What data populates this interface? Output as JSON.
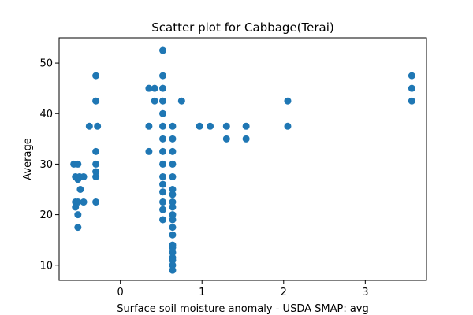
{
  "chart_data": {
    "type": "scatter",
    "title": "Scatter plot for Cabbage(Terai)",
    "xlabel": "Surface soil moisture anomaly  - USDA SMAP: avg",
    "ylabel": "Average",
    "xlim": [
      -0.75,
      3.75
    ],
    "ylim": [
      7,
      55
    ],
    "xticks": [
      0,
      1,
      2,
      3
    ],
    "yticks": [
      10,
      20,
      30,
      40,
      50
    ],
    "grid": false,
    "legend": "none",
    "marker_color": "#1f77b4",
    "points": [
      {
        "x": -0.57,
        "y": 30
      },
      {
        "x": -0.52,
        "y": 30
      },
      {
        "x": -0.55,
        "y": 27.5
      },
      {
        "x": -0.52,
        "y": 27
      },
      {
        "x": -0.5,
        "y": 27.5
      },
      {
        "x": -0.45,
        "y": 27.5
      },
      {
        "x": -0.49,
        "y": 25
      },
      {
        "x": -0.55,
        "y": 22.5
      },
      {
        "x": -0.52,
        "y": 22.5
      },
      {
        "x": -0.45,
        "y": 22.5
      },
      {
        "x": -0.55,
        "y": 21.5
      },
      {
        "x": -0.52,
        "y": 20
      },
      {
        "x": -0.52,
        "y": 17.5
      },
      {
        "x": -0.38,
        "y": 37.5
      },
      {
        "x": -0.3,
        "y": 47.5
      },
      {
        "x": -0.3,
        "y": 42.5
      },
      {
        "x": -0.28,
        "y": 37.5
      },
      {
        "x": -0.3,
        "y": 32.5
      },
      {
        "x": -0.3,
        "y": 30
      },
      {
        "x": -0.3,
        "y": 28.5
      },
      {
        "x": -0.3,
        "y": 27.5
      },
      {
        "x": -0.3,
        "y": 22.5
      },
      {
        "x": 0.35,
        "y": 45
      },
      {
        "x": 0.42,
        "y": 45
      },
      {
        "x": 0.35,
        "y": 37.5
      },
      {
        "x": 0.42,
        "y": 42.5
      },
      {
        "x": 0.35,
        "y": 32.5
      },
      {
        "x": 0.52,
        "y": 52.5
      },
      {
        "x": 0.52,
        "y": 47.5
      },
      {
        "x": 0.52,
        "y": 45
      },
      {
        "x": 0.52,
        "y": 42.5
      },
      {
        "x": 0.52,
        "y": 40
      },
      {
        "x": 0.52,
        "y": 37.5
      },
      {
        "x": 0.52,
        "y": 35
      },
      {
        "x": 0.52,
        "y": 32.5
      },
      {
        "x": 0.52,
        "y": 30
      },
      {
        "x": 0.52,
        "y": 27.5
      },
      {
        "x": 0.52,
        "y": 26
      },
      {
        "x": 0.52,
        "y": 24.5
      },
      {
        "x": 0.52,
        "y": 22.5
      },
      {
        "x": 0.52,
        "y": 21
      },
      {
        "x": 0.52,
        "y": 19
      },
      {
        "x": 0.64,
        "y": 37.5
      },
      {
        "x": 0.64,
        "y": 35
      },
      {
        "x": 0.64,
        "y": 32.5
      },
      {
        "x": 0.64,
        "y": 30
      },
      {
        "x": 0.64,
        "y": 27.5
      },
      {
        "x": 0.64,
        "y": 25
      },
      {
        "x": 0.64,
        "y": 24
      },
      {
        "x": 0.64,
        "y": 22.5
      },
      {
        "x": 0.64,
        "y": 21.5
      },
      {
        "x": 0.64,
        "y": 20
      },
      {
        "x": 0.64,
        "y": 19
      },
      {
        "x": 0.64,
        "y": 17.5
      },
      {
        "x": 0.64,
        "y": 16
      },
      {
        "x": 0.64,
        "y": 14
      },
      {
        "x": 0.64,
        "y": 13.5
      },
      {
        "x": 0.64,
        "y": 12.5
      },
      {
        "x": 0.64,
        "y": 11.5
      },
      {
        "x": 0.64,
        "y": 11
      },
      {
        "x": 0.64,
        "y": 10
      },
      {
        "x": 0.64,
        "y": 9
      },
      {
        "x": 0.75,
        "y": 42.5
      },
      {
        "x": 0.97,
        "y": 37.5
      },
      {
        "x": 1.1,
        "y": 37.5
      },
      {
        "x": 1.3,
        "y": 37.5
      },
      {
        "x": 1.3,
        "y": 35
      },
      {
        "x": 1.54,
        "y": 37.5
      },
      {
        "x": 1.54,
        "y": 35
      },
      {
        "x": 2.05,
        "y": 42.5
      },
      {
        "x": 2.05,
        "y": 37.5
      },
      {
        "x": 3.57,
        "y": 47.5
      },
      {
        "x": 3.57,
        "y": 45
      },
      {
        "x": 3.57,
        "y": 42.5
      }
    ]
  }
}
